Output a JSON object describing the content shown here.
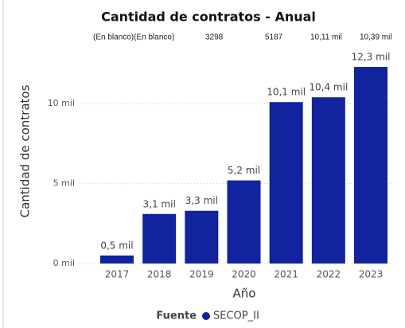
{
  "chart_data": {
    "type": "bar",
    "title": "Cantidad de contratos - Anual",
    "annotations": [
      "(En blanco)(En blanco)",
      "3298",
      "5187",
      "10,11 mil",
      "10,39 mil"
    ],
    "x_label": "Año",
    "y_label": "Cantidad de contratos",
    "categories": [
      "2017",
      "2018",
      "2019",
      "2020",
      "2021",
      "2022",
      "2023"
    ],
    "series": [
      {
        "name": "SECOP_II",
        "color": "#12239e",
        "values": [
          500,
          3100,
          3300,
          5200,
          10100,
          10400,
          12300
        ],
        "value_labels": [
          "0,5 mil",
          "3,1 mil",
          "3,3 mil",
          "5,2 mil",
          "10,1 mil",
          "10,4 mil",
          "12,3 mil"
        ]
      }
    ],
    "legend_title": "Fuente",
    "legend": "bottom",
    "ylim": [
      0,
      13000
    ],
    "yticks": [
      {
        "value": 0,
        "label": "0 mil"
      },
      {
        "value": 5000,
        "label": "5 mil"
      },
      {
        "value": 10000,
        "label": "10 mil"
      }
    ],
    "grid": true
  }
}
